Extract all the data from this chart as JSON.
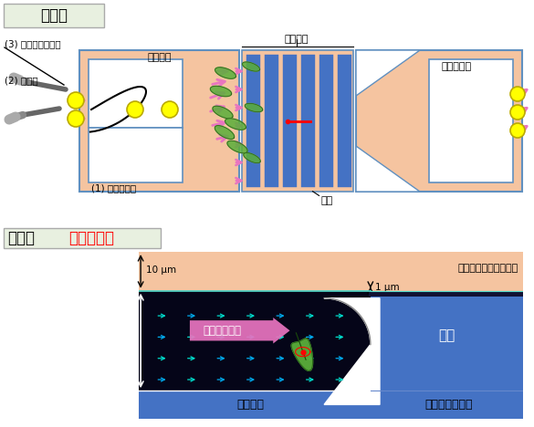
{
  "bg_color": "#ffffff",
  "top_section_label": "俯瞰図",
  "bottom_section_label": "断面図",
  "bottom_section_label2": "（赤線部）",
  "label1": "(1) 懸濁液導入",
  "label2": "(2) 培養液",
  "label3": "(3) 過剰細胞の除去",
  "label_jokyoruro": "除去流路",
  "label_tanriruro": "単離流路",
  "label_dam": "ダム",
  "label_outlet": "培養液出口",
  "label_cross_flow": "培養液の流れ",
  "label_separator_glass": "単離流路ガラス",
  "label_exchange_glass": "培養液交換流路ガラス",
  "label_cross_dam": "ダム",
  "label_cross_tanri": "単離流路",
  "label_10um": "10 μm",
  "label_1um": "1 μm",
  "salmon_color": "#f5c4a0",
  "blue_color": "#4472c4",
  "light_blue_color": "#5b9bd5",
  "pink_arrow_color": "#e975c0",
  "red_color": "#ff0000",
  "black_color": "#000000",
  "green_cell_color": "#5a9e3a",
  "yellow_circle_color": "#ffff00",
  "dark_bg_color": "#050518",
  "dam_blue": "#4472c4",
  "bottom_bg_blue": "#4472c4"
}
